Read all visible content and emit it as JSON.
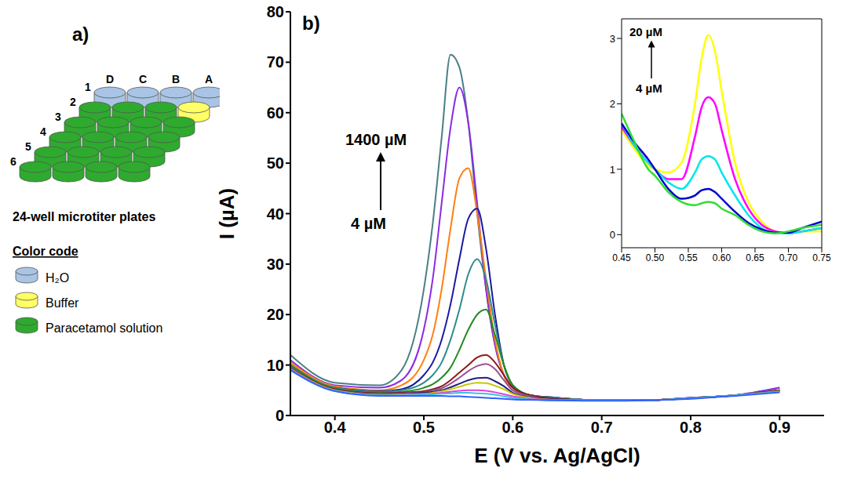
{
  "diagram": {
    "panel": "a)",
    "title": "24-well microtiter plates",
    "columns": [
      "D",
      "C",
      "B",
      "A"
    ],
    "rows": [
      "1",
      "2",
      "3",
      "4",
      "5",
      "6"
    ],
    "legend_title": "Color code",
    "legend": [
      {
        "label": "H₂O",
        "color": "#a9c4e4"
      },
      {
        "label": "Buffer",
        "color": "#ffff66"
      },
      {
        "label": "Paracetamol solution",
        "color": "#2eaa2e"
      }
    ],
    "wells": [
      [
        "H₂O",
        "H₂O",
        "H₂O",
        "H₂O"
      ],
      [
        "Paracetamol solution",
        "Paracetamol solution",
        "Paracetamol solution",
        "Buffer"
      ],
      [
        "Paracetamol solution",
        "Paracetamol solution",
        "Paracetamol solution",
        "Paracetamol solution"
      ],
      [
        "Paracetamol solution",
        "Paracetamol solution",
        "Paracetamol solution",
        "Paracetamol solution"
      ],
      [
        "Paracetamol solution",
        "Paracetamol solution",
        "Paracetamol solution",
        "Paracetamol solution"
      ],
      [
        "Paracetamol solution",
        "Paracetamol solution",
        "Paracetamol solution",
        "Paracetamol solution"
      ]
    ]
  },
  "chart_data": [
    {
      "type": "line",
      "panel": "b)",
      "x_label": "E (V vs. Ag/AgCl)",
      "y_label": "I (µA)",
      "annotations": [
        "1400 µM",
        "4 µM"
      ],
      "xlim": [
        0.35,
        0.95
      ],
      "xticks": [
        0.4,
        0.5,
        0.6,
        0.7,
        0.8,
        0.9
      ],
      "ylim": [
        0,
        80
      ],
      "yticks": [
        0,
        10,
        20,
        30,
        40,
        50,
        60,
        70,
        80
      ],
      "x": [
        0.35,
        0.4,
        0.45,
        0.475,
        0.5,
        0.51,
        0.52,
        0.53,
        0.54,
        0.55,
        0.56,
        0.57,
        0.58,
        0.59,
        0.6,
        0.62,
        0.65,
        0.7,
        0.75,
        0.8,
        0.85,
        0.9
      ],
      "series": [
        {
          "color": "#4a7f86",
          "values": [
            12,
            6.5,
            6,
            9,
            25,
            38,
            55,
            71.5,
            69,
            58,
            40,
            25,
            14,
            8,
            5.5,
            4,
            3.5,
            3,
            3,
            3.5,
            4,
            5.5
          ]
        },
        {
          "color": "#8b2be2",
          "values": [
            11,
            6,
            5.5,
            7,
            17,
            27,
            42,
            57,
            65,
            58,
            42,
            25,
            14,
            8,
            5.5,
            4,
            3.5,
            3,
            3,
            3.5,
            4,
            5.5
          ]
        },
        {
          "color": "#ff7f0e",
          "values": [
            10.5,
            5.8,
            5,
            6,
            11,
            16,
            25,
            37,
            47,
            49,
            40,
            27,
            15,
            8,
            5,
            4,
            3.5,
            3,
            3,
            3.5,
            4,
            5
          ]
        },
        {
          "color": "#1a1aa0",
          "values": [
            10,
            5.5,
            4.8,
            5.2,
            8,
            10.5,
            15,
            22,
            31,
            39,
            41,
            33,
            20,
            10,
            6,
            4,
            3.5,
            3,
            3,
            3.5,
            4,
            5
          ]
        },
        {
          "color": "#2e8b8b",
          "values": [
            10,
            5.5,
            4.7,
            5,
            6.5,
            8,
            10.5,
            15,
            21,
            28,
            31,
            27,
            18,
            10,
            6,
            4,
            3.5,
            3,
            3,
            3.5,
            4,
            5
          ]
        },
        {
          "color": "#228b22",
          "values": [
            10,
            5.3,
            4.5,
            4.7,
            5.5,
            6.2,
            7.5,
            9.5,
            13,
            17,
            20,
            21,
            16,
            10,
            6,
            4,
            3.3,
            3,
            3,
            3.4,
            4,
            5
          ]
        },
        {
          "color": "#8b1a1a",
          "values": [
            9.5,
            5.2,
            4.4,
            4.5,
            4.8,
            5.2,
            5.8,
            7,
            8.5,
            10,
            11.5,
            12,
            10.5,
            8,
            5.5,
            4,
            3.3,
            3,
            3,
            3.4,
            4,
            5
          ]
        },
        {
          "color": "#9b4f96",
          "values": [
            9.5,
            5,
            4.3,
            4.4,
            4.6,
            5,
            5.4,
            6.3,
            7.5,
            8.8,
            9.8,
            10.2,
            9.2,
            7,
            5,
            3.8,
            3.2,
            3,
            3,
            3.4,
            4,
            4.8
          ]
        },
        {
          "color": "#202080",
          "values": [
            9.5,
            5,
            4.2,
            4.3,
            4.5,
            4.7,
            5,
            5.6,
            6.3,
            7,
            7.4,
            7.5,
            6.8,
            5.8,
            4.5,
            3.6,
            3.2,
            3,
            3,
            3.4,
            4,
            4.8
          ]
        },
        {
          "color": "#c8c800",
          "values": [
            9.3,
            5,
            4.1,
            4.2,
            4.3,
            4.5,
            4.8,
            5.2,
            5.7,
            6.2,
            6.5,
            6.4,
            5.9,
            5.2,
            4.3,
            3.5,
            3.1,
            3,
            3,
            3.4,
            4,
            4.8
          ]
        },
        {
          "color": "#e040e0",
          "values": [
            9.2,
            4.9,
            4,
            4.1,
            4.2,
            4.3,
            4.5,
            4.7,
            4.9,
            5,
            5,
            4.9,
            4.6,
            4.2,
            3.8,
            3.3,
            3.1,
            3,
            3,
            3.4,
            4,
            4.7
          ]
        },
        {
          "color": "#40c0e0",
          "values": [
            9,
            4.9,
            4,
            4,
            4.1,
            4.2,
            4.3,
            4.4,
            4.5,
            4.5,
            4.4,
            4.3,
            4.1,
            3.8,
            3.5,
            3.2,
            3,
            3,
            3,
            3.4,
            4,
            4.7
          ]
        },
        {
          "color": "#3060ff",
          "values": [
            9,
            4.8,
            3.9,
            3.9,
            3.9,
            3.9,
            3.9,
            3.8,
            3.8,
            3.7,
            3.6,
            3.5,
            3.4,
            3.3,
            3.2,
            3.1,
            3,
            2.9,
            3,
            3.3,
            3.9,
            4.6
          ]
        }
      ]
    },
    {
      "type": "line",
      "annotations": [
        "20 µM",
        "4 µM"
      ],
      "xlim": [
        0.45,
        0.75
      ],
      "xticks": [
        0.45,
        {
          "value": 0.5,
          "label": "0.50"
        },
        0.55,
        {
          "value": 0.6,
          "label": "0.60"
        },
        0.65,
        {
          "value": 0.7,
          "label": "0.70"
        },
        0.75
      ],
      "ylim": [
        -0.2,
        3.3
      ],
      "yticks": [
        0,
        1,
        2,
        3
      ],
      "x": [
        0.45,
        0.47,
        0.49,
        0.5,
        0.52,
        0.54,
        0.56,
        0.57,
        0.58,
        0.59,
        0.6,
        0.62,
        0.64,
        0.66,
        0.68,
        0.7,
        0.72,
        0.75
      ],
      "series": [
        {
          "color": "#ffff00",
          "values": [
            1.6,
            1.3,
            1.05,
            1.0,
            0.95,
            1.1,
            2.0,
            2.7,
            3.05,
            2.8,
            2.2,
            1.1,
            0.5,
            0.2,
            0.05,
            0.02,
            0.05,
            0.05
          ]
        },
        {
          "color": "#ff00ff",
          "values": [
            1.65,
            1.35,
            1.1,
            1.0,
            0.85,
            0.85,
            1.5,
            1.95,
            2.1,
            2.0,
            1.6,
            0.85,
            0.4,
            0.15,
            0.05,
            0.02,
            0.05,
            0.1
          ]
        },
        {
          "color": "#00e5ee",
          "values": [
            1.7,
            1.35,
            1.1,
            1.0,
            0.8,
            0.7,
            0.95,
            1.15,
            1.2,
            1.15,
            0.95,
            0.6,
            0.3,
            0.1,
            0.03,
            0.02,
            0.05,
            0.1
          ]
        },
        {
          "color": "#0000cd",
          "values": [
            1.7,
            1.4,
            1.15,
            1.0,
            0.7,
            0.55,
            0.6,
            0.68,
            0.7,
            0.65,
            0.55,
            0.35,
            0.18,
            0.08,
            0.03,
            0.03,
            0.1,
            0.2
          ]
        },
        {
          "color": "#33dd33",
          "values": [
            1.85,
            1.4,
            1.0,
            0.9,
            0.65,
            0.5,
            0.45,
            0.48,
            0.5,
            0.48,
            0.4,
            0.3,
            0.15,
            0.05,
            0.02,
            0.05,
            0.1,
            0.15
          ]
        }
      ]
    }
  ]
}
